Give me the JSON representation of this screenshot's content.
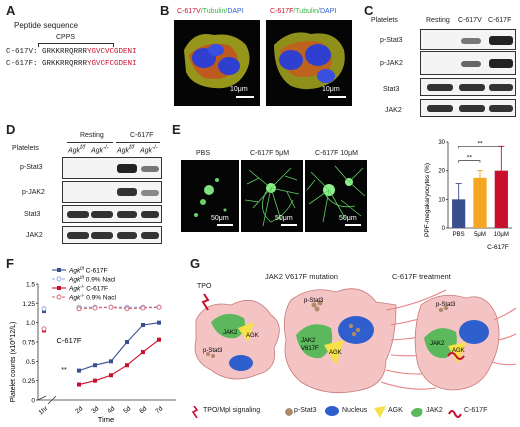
{
  "panels": {
    "A": "A",
    "B": "B",
    "C": "C",
    "D": "D",
    "E": "E",
    "F": "F",
    "G": "G"
  },
  "panelA": {
    "title": "Peptide sequence",
    "cpps": "CPPS",
    "rows": [
      {
        "label": "C-617V:",
        "black": "GRKKRRQRRR",
        "red": "YGVCVCGDENI"
      },
      {
        "label": "C-617F:",
        "black": "GRKKRRQRRR",
        "red": "YGVCFCGDENI"
      }
    ]
  },
  "panelB": {
    "images": [
      {
        "t1": "C-617V",
        "t2": "/Tubulin/",
        "t3": "DAPI",
        "scale": "10μm"
      },
      {
        "t1": "C-617F",
        "t2": "/Tubulin/",
        "t3": "DAPI",
        "scale": "10μm"
      }
    ]
  },
  "panelC": {
    "header": "Platelets",
    "cols": [
      "Resting",
      "C-617V",
      "C-617F"
    ],
    "rows": [
      "p-Stat3",
      "p-JAK2",
      "Stat3",
      "JAK2"
    ]
  },
  "panelD": {
    "header": "Platelets",
    "groups": [
      "Resting",
      "C-617F"
    ],
    "lanes": [
      "Agk",
      "Agk",
      "Agk",
      "Agk"
    ],
    "lane_sups": [
      "f/f",
      "-/-",
      "f/f",
      "-/-"
    ],
    "rows": [
      "p-Stat3",
      "p-JAK2",
      "Stat3",
      "JAK2"
    ]
  },
  "panelE": {
    "images": [
      {
        "label": "PBS",
        "scale": "50μm"
      },
      {
        "label": "C-617F 5μM",
        "scale": "50μm"
      },
      {
        "label": "C-617F 10μM",
        "scale": "50μm"
      }
    ]
  },
  "panelF": {
    "annotation": "C-617F",
    "sig": "**",
    "legend": [
      {
        "gene": "Agk",
        "sup": "f/f",
        "treat": " C-617F",
        "color": "#3a4f8f",
        "style": "solid"
      },
      {
        "gene": "Agk",
        "sup": "f/f",
        "treat": " 0.9% Nacl",
        "color": "#8fa6d8",
        "style": "dashed"
      },
      {
        "gene": "Agk",
        "sup": "-/-",
        "treat": " C-617F",
        "color": "#c8102e",
        "style": "solid"
      },
      {
        "gene": "Agk",
        "sup": "-/-",
        "treat": " 0.9% Nacl",
        "color": "#d4606e",
        "style": "dashed"
      }
    ]
  },
  "panelG": {
    "titles": [
      "JAK2 V617F mutation",
      "C-617F treatment"
    ],
    "tpo": "TPO",
    "cell_labels": {
      "jak2": "JAK2",
      "pstat3": "p-Stat3",
      "agk": "AGK",
      "jak2v": "JAK2\nV617F"
    },
    "legend": [
      "TPO/Mpl signaling",
      "p-Stat3",
      "Nucleus",
      "AGK",
      "JAK2",
      "C-617F"
    ]
  },
  "chart_data": [
    {
      "type": "bar",
      "title": "",
      "xlabel": "",
      "ylabel": "PPF-megakaryocytes (%)",
      "categories": [
        "PBS",
        "5μM",
        "10μM"
      ],
      "xlabel_extra": "C-617F",
      "values": [
        10,
        17.5,
        20
      ],
      "errors": [
        5.5,
        2.5,
        8.5
      ],
      "colors": [
        "#3a4f8f",
        "#f5a623",
        "#c8102e"
      ],
      "ylim": [
        0,
        30
      ],
      "yticks": [
        0,
        10,
        20,
        30
      ],
      "significance": [
        {
          "from": 0,
          "to": 1,
          "label": "**"
        },
        {
          "from": 0,
          "to": 2,
          "label": "**"
        }
      ]
    },
    {
      "type": "line",
      "title": "",
      "xlabel": "Time",
      "ylabel": "Platelet counts (x10^12/L)",
      "x": [
        "1hr",
        "2d",
        "3d",
        "4d",
        "5d",
        "6d",
        "7d"
      ],
      "ylim": [
        0,
        1.5
      ],
      "yticks": [
        0,
        0.25,
        0.5,
        0.75,
        1.0,
        1.25,
        1.5
      ],
      "series": [
        {
          "name": "Agk f/f C-617F",
          "values": [
            1.15,
            0.38,
            0.45,
            0.5,
            0.75,
            0.97,
            1.0
          ]
        },
        {
          "name": "Agk f/f 0.9% Nacl",
          "values": [
            1.18,
            1.2,
            1.2,
            1.2,
            1.2,
            1.2,
            1.2
          ]
        },
        {
          "name": "Agk -/- C-617F",
          "values": [
            0.9,
            0.2,
            0.25,
            0.32,
            0.45,
            0.62,
            0.78
          ]
        },
        {
          "name": "Agk -/- 0.9% Nacl",
          "values": [
            0.92,
            1.18,
            1.19,
            1.2,
            1.18,
            1.19,
            1.2
          ]
        }
      ]
    }
  ]
}
